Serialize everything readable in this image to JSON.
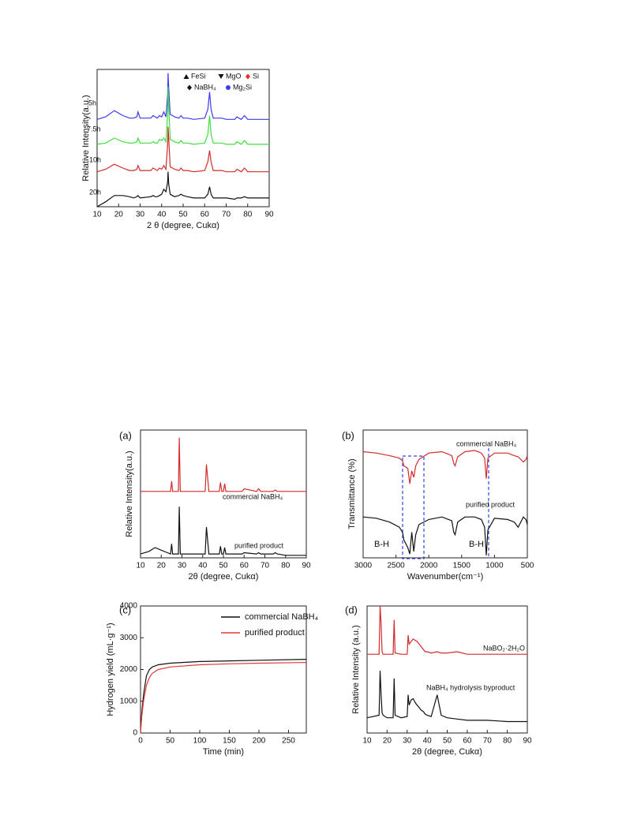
{
  "chart_data": [
    {
      "type": "line",
      "xlabel": "2 θ (degree, Cukα)",
      "ylabel": "Relative Intensity(a.u.)",
      "xlim": [
        10,
        90
      ],
      "xticks": [
        10,
        20,
        30,
        40,
        50,
        60,
        70,
        80,
        90
      ],
      "ylim": [
        0,
        110
      ],
      "x": [
        10,
        14,
        18,
        22,
        25,
        27,
        28.5,
        29,
        30,
        35,
        36,
        37,
        38,
        39,
        40,
        41,
        42,
        42.8,
        43,
        43.3,
        44,
        46,
        48,
        49,
        50,
        52,
        55,
        60,
        61.5,
        62.3,
        63,
        64,
        68,
        70,
        74,
        75,
        77,
        78.5,
        80,
        85,
        90
      ],
      "series": [
        {
          "name": "5h",
          "color": "#3b3bf2",
          "values": [
            70,
            72,
            77,
            73,
            71,
            71,
            72,
            76,
            71,
            71,
            73,
            72,
            71,
            73,
            72,
            76,
            72,
            90,
            107,
            95,
            74,
            72,
            71,
            73,
            71,
            71,
            70,
            71,
            78,
            92,
            78,
            71,
            71,
            70,
            70,
            72,
            70,
            73,
            70,
            70,
            70
          ]
        },
        {
          "name": "7.5h",
          "color": "#3ddf3d",
          "values": [
            50,
            51,
            55,
            52,
            51,
            51,
            52,
            55,
            51,
            51,
            52,
            51,
            51,
            54,
            53,
            55,
            52,
            75,
            96,
            80,
            54,
            52,
            51,
            53,
            51,
            51,
            50,
            51,
            58,
            73,
            58,
            51,
            51,
            50,
            50,
            52,
            50,
            53,
            50,
            50,
            50
          ]
        },
        {
          "name": "10h",
          "color": "#d22b2b",
          "values": [
            28,
            30,
            34,
            31,
            29,
            29,
            30,
            33,
            29,
            29,
            31,
            30,
            29,
            31,
            30,
            33,
            30,
            50,
            64,
            55,
            32,
            30,
            29,
            31,
            29,
            29,
            28,
            29,
            36,
            45,
            36,
            29,
            29,
            28,
            28,
            30,
            28,
            31,
            28,
            28,
            28
          ]
        },
        {
          "name": "20h",
          "color": "#111111",
          "values": [
            0,
            4,
            9,
            9,
            8,
            7,
            8,
            9,
            7,
            8,
            9,
            8,
            8,
            9,
            10,
            14,
            12,
            20,
            28,
            18,
            10,
            8,
            9,
            10,
            9,
            8,
            7,
            7,
            10,
            16,
            10,
            7,
            7,
            7,
            6,
            7,
            7,
            8,
            7,
            7,
            7
          ]
        }
      ],
      "legend": [
        {
          "name": "FeSi",
          "marker": "triangle-up",
          "color": "#111111"
        },
        {
          "name": "MgO",
          "marker": "triangle-down",
          "color": "#111111"
        },
        {
          "name": "Si",
          "marker": "diamond",
          "color": "#e03030"
        },
        {
          "name": "NaBH₄",
          "marker": "diamond",
          "color": "#111111"
        },
        {
          "name": "Mg₂Si",
          "marker": "circle",
          "color": "#3b3bf2"
        }
      ]
    },
    {
      "type": "line",
      "panel_label": "(a)",
      "xlabel": "2θ (degree, Cukα)",
      "ylabel": "Relative Intensity(a.u.)",
      "xlim": [
        10,
        90
      ],
      "xticks": [
        10,
        20,
        30,
        40,
        50,
        60,
        70,
        80,
        90
      ],
      "ylim": [
        0,
        100
      ],
      "x": [
        10,
        14,
        17,
        20,
        23,
        24.5,
        25,
        25.5,
        27,
        28.3,
        28.7,
        29.2,
        32,
        35,
        40,
        41.2,
        41.8,
        43,
        48,
        48.6,
        49.2,
        50,
        50.6,
        51.2,
        55,
        59,
        60,
        66,
        67,
        68,
        74,
        75,
        76,
        80,
        90
      ],
      "series": [
        {
          "name": "commercial NaBH₄",
          "color": "#d22b2b",
          "values": [
            52,
            52,
            52,
            52,
            52,
            52,
            60,
            52,
            52,
            52,
            94,
            52,
            52,
            52,
            52,
            52,
            73,
            52,
            52,
            59,
            52,
            52,
            58,
            52,
            52,
            52,
            54,
            52,
            54,
            52,
            52,
            53,
            52,
            52,
            52
          ]
        },
        {
          "name": "purified product",
          "color": "#111111",
          "values": [
            3,
            5,
            8,
            6,
            4,
            3,
            11,
            3,
            3,
            3,
            40,
            3,
            3,
            3,
            3,
            3,
            24,
            3,
            3,
            9,
            3,
            3,
            8,
            3,
            3,
            3,
            4,
            3,
            4,
            3,
            3,
            4,
            3,
            2,
            2
          ]
        }
      ]
    },
    {
      "type": "line",
      "panel_label": "(b)",
      "xlabel": "Wavenumber(cm⁻¹)",
      "ylabel": "Transmittance (%)",
      "xlim": [
        3000,
        500
      ],
      "xticks": [
        3000,
        2500,
        2000,
        1500,
        1000,
        500
      ],
      "ylim": [
        0,
        100
      ],
      "x": [
        3000,
        2800,
        2600,
        2450,
        2400,
        2380,
        2320,
        2290,
        2260,
        2230,
        2200,
        2150,
        2000,
        1800,
        1650,
        1620,
        1600,
        1560,
        1450,
        1300,
        1200,
        1150,
        1125,
        1100,
        1000,
        800,
        700,
        640,
        560,
        520,
        500
      ],
      "series": [
        {
          "name": "commercial NaBH₄",
          "color": "#d22b2b",
          "values": [
            83,
            82,
            80,
            78,
            76,
            72,
            70,
            58,
            68,
            63,
            72,
            77,
            82,
            83,
            80,
            74,
            72,
            79,
            83,
            84,
            82,
            78,
            62,
            78,
            82,
            82,
            80,
            79,
            75,
            77,
            80
          ]
        },
        {
          "name": "purified product",
          "color": "#111111",
          "values": [
            32,
            31,
            28,
            24,
            20,
            14,
            8,
            3,
            20,
            5,
            18,
            26,
            30,
            32,
            29,
            20,
            18,
            28,
            32,
            32,
            30,
            24,
            2,
            22,
            31,
            30,
            28,
            24,
            32,
            30,
            26
          ]
        }
      ],
      "annotations": [
        "B-H",
        "B-H"
      ]
    },
    {
      "type": "line",
      "panel_label": "(c)",
      "xlabel": "Time (min)",
      "ylabel": "Hydrogen yield (mL·g⁻¹)",
      "xlim": [
        0,
        280
      ],
      "xticks": [
        0,
        50,
        100,
        150,
        200,
        250
      ],
      "ylim": [
        0,
        4000
      ],
      "yticks": [
        0,
        1000,
        2000,
        3000,
        4000
      ],
      "legend_position": "upper-right",
      "x": [
        0,
        2,
        5,
        10,
        15,
        20,
        30,
        50,
        100,
        150,
        200,
        280
      ],
      "series": [
        {
          "name": "commercial NaBH₄",
          "color": "#111111",
          "values": [
            0,
            600,
            1200,
            1800,
            2000,
            2080,
            2150,
            2200,
            2250,
            2270,
            2290,
            2320
          ]
        },
        {
          "name": "purified product",
          "color": "#e03a3a",
          "values": [
            0,
            500,
            1000,
            1500,
            1750,
            1880,
            2000,
            2080,
            2150,
            2180,
            2200,
            2220
          ]
        }
      ]
    },
    {
      "type": "line",
      "panel_label": "(d)",
      "xlabel": "2θ (degree, Cukα)",
      "ylabel": "Relative Intensity (a.u.)",
      "xlim": [
        10,
        90
      ],
      "xticks": [
        10,
        20,
        30,
        40,
        50,
        60,
        70,
        80,
        90
      ],
      "ylim": [
        0,
        100
      ],
      "x": [
        10,
        16,
        16.5,
        17,
        17.5,
        18,
        20,
        23,
        23.5,
        24,
        27,
        30,
        30.5,
        31,
        32,
        33,
        34,
        35,
        36,
        37,
        38,
        39,
        40,
        42,
        45,
        47,
        50,
        55,
        60,
        65,
        70,
        80,
        90
      ],
      "series": [
        {
          "name": "NaBO₂·2H₂O",
          "color": "#d22b2b",
          "values": [
            62,
            62,
            100,
            86,
            64,
            62,
            62,
            62,
            89,
            63,
            62,
            62,
            77,
            70,
            72,
            74,
            73,
            72,
            70,
            68,
            66,
            64,
            64,
            63,
            64,
            63,
            63,
            64,
            62,
            62,
            62,
            62,
            62
          ]
        },
        {
          "name": "NaBH₄ hydrolysis byproduct",
          "color": "#111111",
          "values": [
            12,
            14,
            49,
            30,
            16,
            14,
            12,
            12,
            43,
            14,
            12,
            13,
            30,
            22,
            26,
            27,
            24,
            22,
            20,
            18,
            17,
            15,
            14,
            13,
            30,
            14,
            12,
            11,
            10,
            10,
            10,
            9,
            9
          ]
        }
      ]
    }
  ]
}
